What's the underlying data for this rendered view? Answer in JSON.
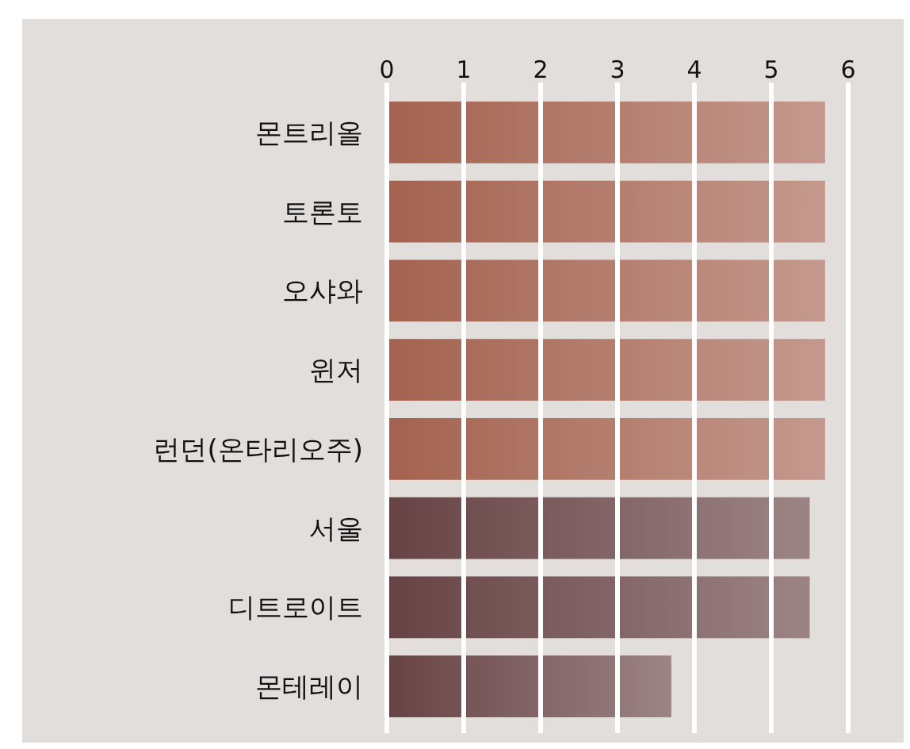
{
  "chart_data": {
    "type": "bar",
    "orientation": "horizontal",
    "categories": [
      "몬트리올",
      "토론토",
      "오샤와",
      "윈저",
      "런던(온타리오주)",
      "서울",
      "디트로이트",
      "몬테레이"
    ],
    "values": [
      5.7,
      5.7,
      5.7,
      5.7,
      5.7,
      5.5,
      5.5,
      3.7
    ],
    "colors": [
      "#a4624f",
      "#a4624f",
      "#a4624f",
      "#a4624f",
      "#a4624f",
      "#674244",
      "#674244",
      "#674244"
    ],
    "xlim": [
      0,
      6
    ],
    "xticks": [
      0,
      1,
      2,
      3,
      4,
      5,
      6
    ],
    "grid": "x"
  }
}
